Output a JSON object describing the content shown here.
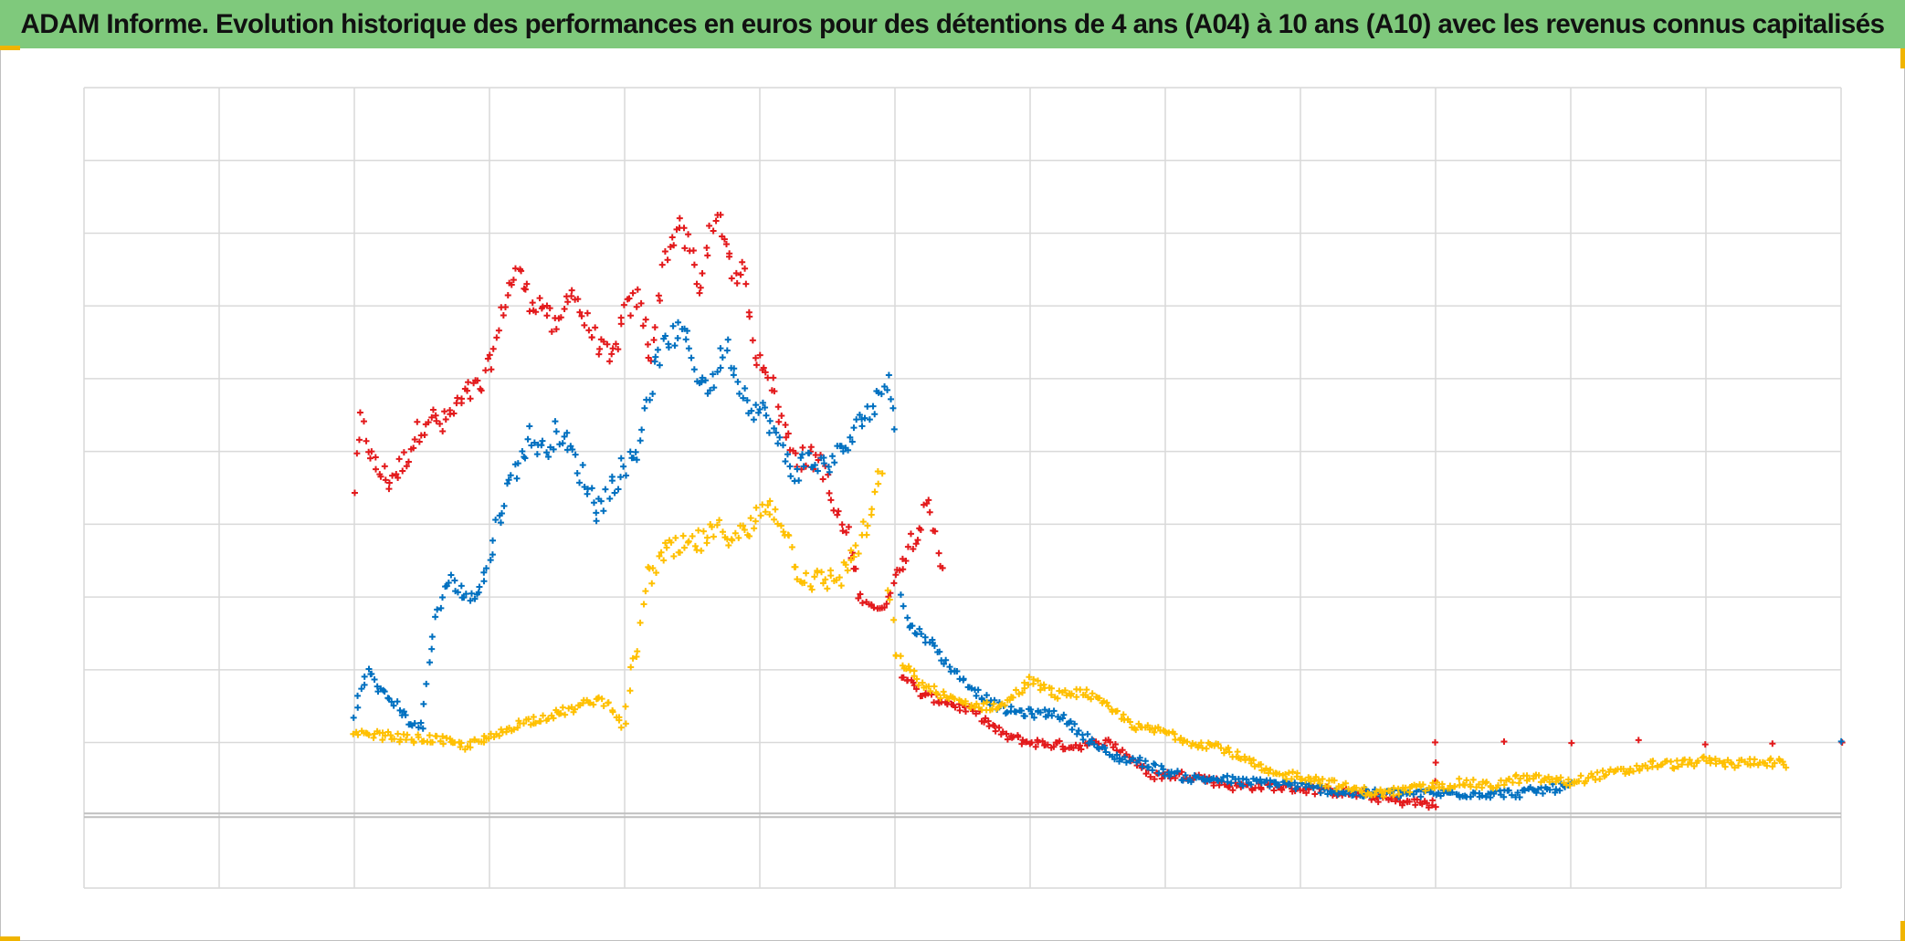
{
  "title": "ADAM Informe. Evolution historique des performances en euros pour des détentions de 4 ans (A04) à 10 ans (A10) avec les revenus connus capitalisés",
  "colors": {
    "title_background": "#7fc97c",
    "corner_marks": "#f0b400",
    "grid": "#d9d9d9",
    "baseline": "#bfbfbf"
  },
  "chart_data": {
    "type": "scatter",
    "marker": "plus",
    "title": "ADAM Informe. Evolution historique des performances en euros pour des détentions de 4 ans (A04) à 10 ans (A10) avec les revenus connus capitalisés",
    "xlabel": "",
    "ylabel": "",
    "grid": true,
    "legend": "none",
    "tick_labels_visible": false,
    "note": "Axis tick labels are not printed; x and y are expressed in grid units (x: 0–13 vertical grid columns, y: 0–11 horizontal grid rows, with the dark baseline at y = 1).",
    "xlim": [
      0,
      13
    ],
    "ylim": [
      0,
      11
    ],
    "baseline_y": 1,
    "series": [
      {
        "color": "#e31a1c",
        "points": [
          [
            2.0,
            5.5
          ],
          [
            2.05,
            6.4
          ],
          [
            2.15,
            5.8
          ],
          [
            2.25,
            5.6
          ],
          [
            2.35,
            5.8
          ],
          [
            2.45,
            6.2
          ],
          [
            2.55,
            6.5
          ],
          [
            2.65,
            6.35
          ],
          [
            2.75,
            6.6
          ],
          [
            2.85,
            6.8
          ],
          [
            2.95,
            6.9
          ],
          [
            3.05,
            7.5
          ],
          [
            3.1,
            8.0
          ],
          [
            3.2,
            8.5
          ],
          [
            3.3,
            8.1
          ],
          [
            3.4,
            8.0
          ],
          [
            3.5,
            7.6
          ],
          [
            3.6,
            8.3
          ],
          [
            3.7,
            7.8
          ],
          [
            3.8,
            7.5
          ],
          [
            3.9,
            7.2
          ],
          [
            4.0,
            7.9
          ],
          [
            4.1,
            8.1
          ],
          [
            4.2,
            7.3
          ],
          [
            4.3,
            8.7
          ],
          [
            4.4,
            9.1
          ],
          [
            4.5,
            8.7
          ],
          [
            4.55,
            8.1
          ],
          [
            4.6,
            8.8
          ],
          [
            4.7,
            9.2
          ],
          [
            4.8,
            8.5
          ],
          [
            4.9,
            8.4
          ],
          [
            4.95,
            7.4
          ],
          [
            5.05,
            7.2
          ],
          [
            5.2,
            6.2
          ],
          [
            5.3,
            5.9
          ],
          [
            5.45,
            5.9
          ],
          [
            5.55,
            5.2
          ],
          [
            5.65,
            4.8
          ],
          [
            5.75,
            4.0
          ],
          [
            5.9,
            3.8
          ],
          [
            6.05,
            4.5
          ],
          [
            6.15,
            4.9
          ],
          [
            6.25,
            5.2
          ],
          [
            6.35,
            4.4
          ],
          [
            6.05,
            2.95
          ],
          [
            6.2,
            2.65
          ],
          [
            6.4,
            2.55
          ],
          [
            6.6,
            2.4
          ],
          [
            6.8,
            2.1
          ],
          [
            7.0,
            2.0
          ],
          [
            7.3,
            1.95
          ],
          [
            7.6,
            2.0
          ],
          [
            7.9,
            1.55
          ],
          [
            8.2,
            1.55
          ],
          [
            8.5,
            1.4
          ],
          [
            8.8,
            1.4
          ],
          [
            9.1,
            1.35
          ],
          [
            9.4,
            1.3
          ],
          [
            9.7,
            1.2
          ],
          [
            10.0,
            1.15
          ],
          [
            10.0,
            2.0
          ],
          [
            10.5,
            2.0
          ],
          [
            11.0,
            2.0
          ],
          [
            11.5,
            2.0
          ],
          [
            12.0,
            2.0
          ],
          [
            12.5,
            2.0
          ],
          [
            13.0,
            2.0
          ]
        ]
      },
      {
        "color": "#0070c0",
        "points": [
          [
            2.0,
            2.4
          ],
          [
            2.1,
            3.0
          ],
          [
            2.2,
            2.7
          ],
          [
            2.3,
            2.55
          ],
          [
            2.4,
            2.3
          ],
          [
            2.5,
            2.2
          ],
          [
            2.55,
            3.1
          ],
          [
            2.6,
            3.7
          ],
          [
            2.7,
            4.3
          ],
          [
            2.8,
            4.0
          ],
          [
            2.9,
            4.0
          ],
          [
            3.0,
            4.5
          ],
          [
            3.1,
            5.3
          ],
          [
            3.2,
            5.8
          ],
          [
            3.3,
            6.2
          ],
          [
            3.4,
            6.0
          ],
          [
            3.5,
            6.3
          ],
          [
            3.6,
            6.0
          ],
          [
            3.7,
            5.6
          ],
          [
            3.8,
            5.2
          ],
          [
            3.9,
            5.5
          ],
          [
            4.0,
            5.8
          ],
          [
            4.1,
            6.0
          ],
          [
            4.15,
            6.6
          ],
          [
            4.25,
            7.3
          ],
          [
            4.35,
            7.6
          ],
          [
            4.45,
            7.6
          ],
          [
            4.55,
            7.0
          ],
          [
            4.65,
            6.9
          ],
          [
            4.75,
            7.5
          ],
          [
            4.85,
            6.9
          ],
          [
            4.95,
            6.6
          ],
          [
            5.05,
            6.5
          ],
          [
            5.15,
            6.05
          ],
          [
            5.25,
            5.7
          ],
          [
            5.35,
            5.9
          ],
          [
            5.45,
            5.8
          ],
          [
            5.55,
            5.9
          ],
          [
            5.65,
            6.1
          ],
          [
            5.7,
            6.2
          ],
          [
            5.75,
            6.5
          ],
          [
            5.85,
            6.6
          ],
          [
            5.95,
            7.1
          ],
          [
            6.0,
            6.4
          ],
          [
            6.05,
            4.0
          ],
          [
            6.1,
            3.6
          ],
          [
            6.2,
            3.5
          ],
          [
            6.3,
            3.3
          ],
          [
            6.4,
            3.05
          ],
          [
            6.6,
            2.7
          ],
          [
            6.8,
            2.45
          ],
          [
            7.0,
            2.4
          ],
          [
            7.2,
            2.4
          ],
          [
            7.4,
            2.1
          ],
          [
            7.6,
            1.8
          ],
          [
            7.8,
            1.75
          ],
          [
            8.0,
            1.6
          ],
          [
            8.2,
            1.5
          ],
          [
            8.4,
            1.5
          ],
          [
            8.6,
            1.45
          ],
          [
            8.8,
            1.45
          ],
          [
            9.0,
            1.4
          ],
          [
            9.2,
            1.35
          ],
          [
            9.4,
            1.3
          ],
          [
            9.6,
            1.3
          ],
          [
            9.8,
            1.3
          ],
          [
            10.0,
            1.3
          ],
          [
            10.2,
            1.3
          ],
          [
            10.4,
            1.3
          ],
          [
            10.6,
            1.3
          ],
          [
            10.8,
            1.35
          ],
          [
            11.0,
            1.4
          ],
          [
            13.0,
            2.0
          ]
        ]
      },
      {
        "color": "#ffc000",
        "points": [
          [
            2.0,
            2.1
          ],
          [
            2.2,
            2.1
          ],
          [
            2.4,
            2.05
          ],
          [
            2.6,
            2.05
          ],
          [
            2.8,
            1.95
          ],
          [
            3.0,
            2.05
          ],
          [
            3.2,
            2.25
          ],
          [
            3.4,
            2.35
          ],
          [
            3.6,
            2.45
          ],
          [
            3.8,
            2.6
          ],
          [
            3.9,
            2.5
          ],
          [
            4.0,
            2.2
          ],
          [
            4.05,
            3.0
          ],
          [
            4.1,
            3.3
          ],
          [
            4.15,
            4.2
          ],
          [
            4.3,
            4.6
          ],
          [
            4.5,
            4.7
          ],
          [
            4.7,
            4.9
          ],
          [
            4.9,
            4.85
          ],
          [
            5.05,
            5.3
          ],
          [
            5.15,
            5.1
          ],
          [
            5.3,
            4.3
          ],
          [
            5.45,
            4.2
          ],
          [
            5.6,
            4.3
          ],
          [
            5.7,
            4.6
          ],
          [
            5.8,
            5.0
          ],
          [
            5.9,
            5.7
          ],
          [
            5.95,
            4.2
          ],
          [
            6.0,
            3.2
          ],
          [
            6.2,
            2.8
          ],
          [
            6.4,
            2.6
          ],
          [
            6.6,
            2.5
          ],
          [
            6.8,
            2.5
          ],
          [
            7.0,
            2.85
          ],
          [
            7.2,
            2.65
          ],
          [
            7.4,
            2.7
          ],
          [
            7.6,
            2.45
          ],
          [
            7.8,
            2.2
          ],
          [
            8.0,
            2.15
          ],
          [
            8.2,
            2.0
          ],
          [
            8.4,
            1.95
          ],
          [
            8.6,
            1.75
          ],
          [
            8.8,
            1.55
          ],
          [
            9.0,
            1.55
          ],
          [
            9.2,
            1.45
          ],
          [
            9.4,
            1.35
          ],
          [
            9.6,
            1.3
          ],
          [
            9.8,
            1.35
          ],
          [
            10.0,
            1.4
          ],
          [
            10.2,
            1.45
          ],
          [
            10.4,
            1.4
          ],
          [
            10.6,
            1.5
          ],
          [
            10.8,
            1.5
          ],
          [
            11.0,
            1.45
          ],
          [
            11.2,
            1.55
          ],
          [
            11.4,
            1.6
          ],
          [
            11.6,
            1.7
          ],
          [
            11.8,
            1.7
          ],
          [
            12.0,
            1.75
          ],
          [
            12.2,
            1.7
          ],
          [
            12.4,
            1.75
          ],
          [
            12.6,
            1.7
          ]
        ]
      }
    ]
  }
}
